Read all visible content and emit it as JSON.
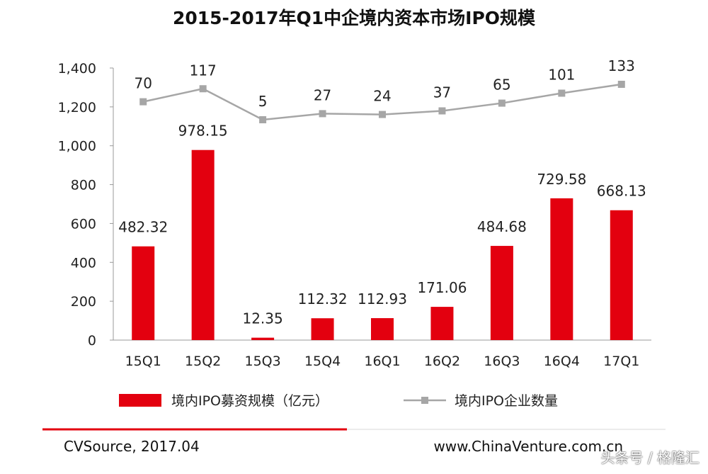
{
  "chart_data": {
    "type": "bar",
    "title": "2015-2017年Q1中企境内资本市场IPO规模",
    "categories": [
      "15Q1",
      "15Q2",
      "15Q3",
      "15Q4",
      "16Q1",
      "16Q2",
      "16Q3",
      "16Q4",
      "17Q1"
    ],
    "series": [
      {
        "name": "境内IPO募资规模（亿元）",
        "type": "bar",
        "color": "#e3000f",
        "values": [
          482.32,
          978.15,
          12.35,
          112.32,
          112.93,
          171.06,
          484.68,
          729.58,
          668.13
        ],
        "labels": [
          "482.32",
          "978.15",
          "12.35",
          "112.32",
          "112.93",
          "171.06",
          "484.68",
          "729.58",
          "668.13"
        ]
      },
      {
        "name": "境内IPO企业数量",
        "type": "line",
        "color": "#a6a6a6",
        "values": [
          70,
          117,
          5,
          27,
          24,
          37,
          65,
          101,
          133
        ]
      }
    ],
    "ylim": [
      0,
      1400
    ],
    "yticks": [
      "0",
      "200",
      "400",
      "600",
      "800",
      "1,000",
      "1,200",
      "1,400"
    ],
    "grid": false,
    "legend_position": "bottom"
  },
  "footer": {
    "source": "CVSource, 2017.04",
    "site": "www.ChinaVenture.com.cn",
    "watermark": "头条号 / 格隆汇"
  },
  "colors": {
    "divider_red": "#e3000f",
    "divider_gray": "#d9d9d9"
  }
}
